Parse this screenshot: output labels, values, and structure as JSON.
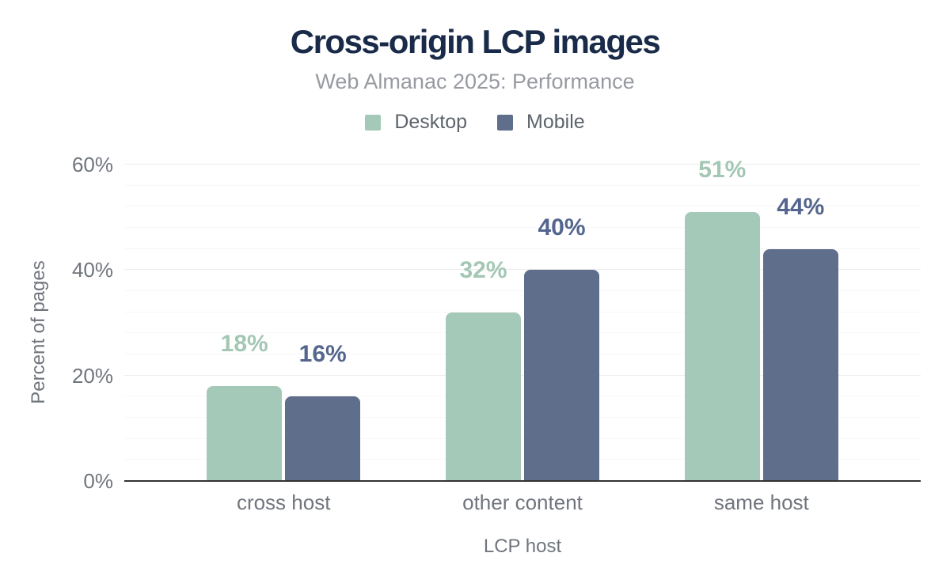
{
  "chart_data": {
    "type": "bar",
    "title": "Cross-origin LCP images",
    "subtitle": "Web Almanac 2025: Performance",
    "xlabel": "LCP host",
    "ylabel": "Percent of pages",
    "categories": [
      "cross host",
      "other content",
      "same host"
    ],
    "series": [
      {
        "name": "Desktop",
        "color": "#a5c9b8",
        "label_color": "#a3c7b4",
        "values": [
          18,
          32,
          51
        ],
        "display_values": [
          "18%",
          "32%",
          "51%"
        ]
      },
      {
        "name": "Mobile",
        "color": "#5e6e8b",
        "label_color": "#54668e",
        "values": [
          16,
          40,
          44
        ],
        "display_values": [
          "16%",
          "40%",
          "44%"
        ]
      }
    ],
    "ylim": [
      0,
      60
    ],
    "yticks": [
      0,
      20,
      40,
      60
    ],
    "ytick_labels": [
      "0%",
      "20%",
      "40%",
      "60%"
    ],
    "minor_grid_step": 4,
    "grid": true,
    "legend_position": "top"
  },
  "style_colors": {
    "title": "#1a2b49",
    "subtitle": "#979aa0",
    "axis_text": "#70757d",
    "legend_text": "#5d636b",
    "axis_line": "#333333",
    "major_grid": "#ececec",
    "minor_grid": "#f7f7f7",
    "background": "#ffffff"
  }
}
